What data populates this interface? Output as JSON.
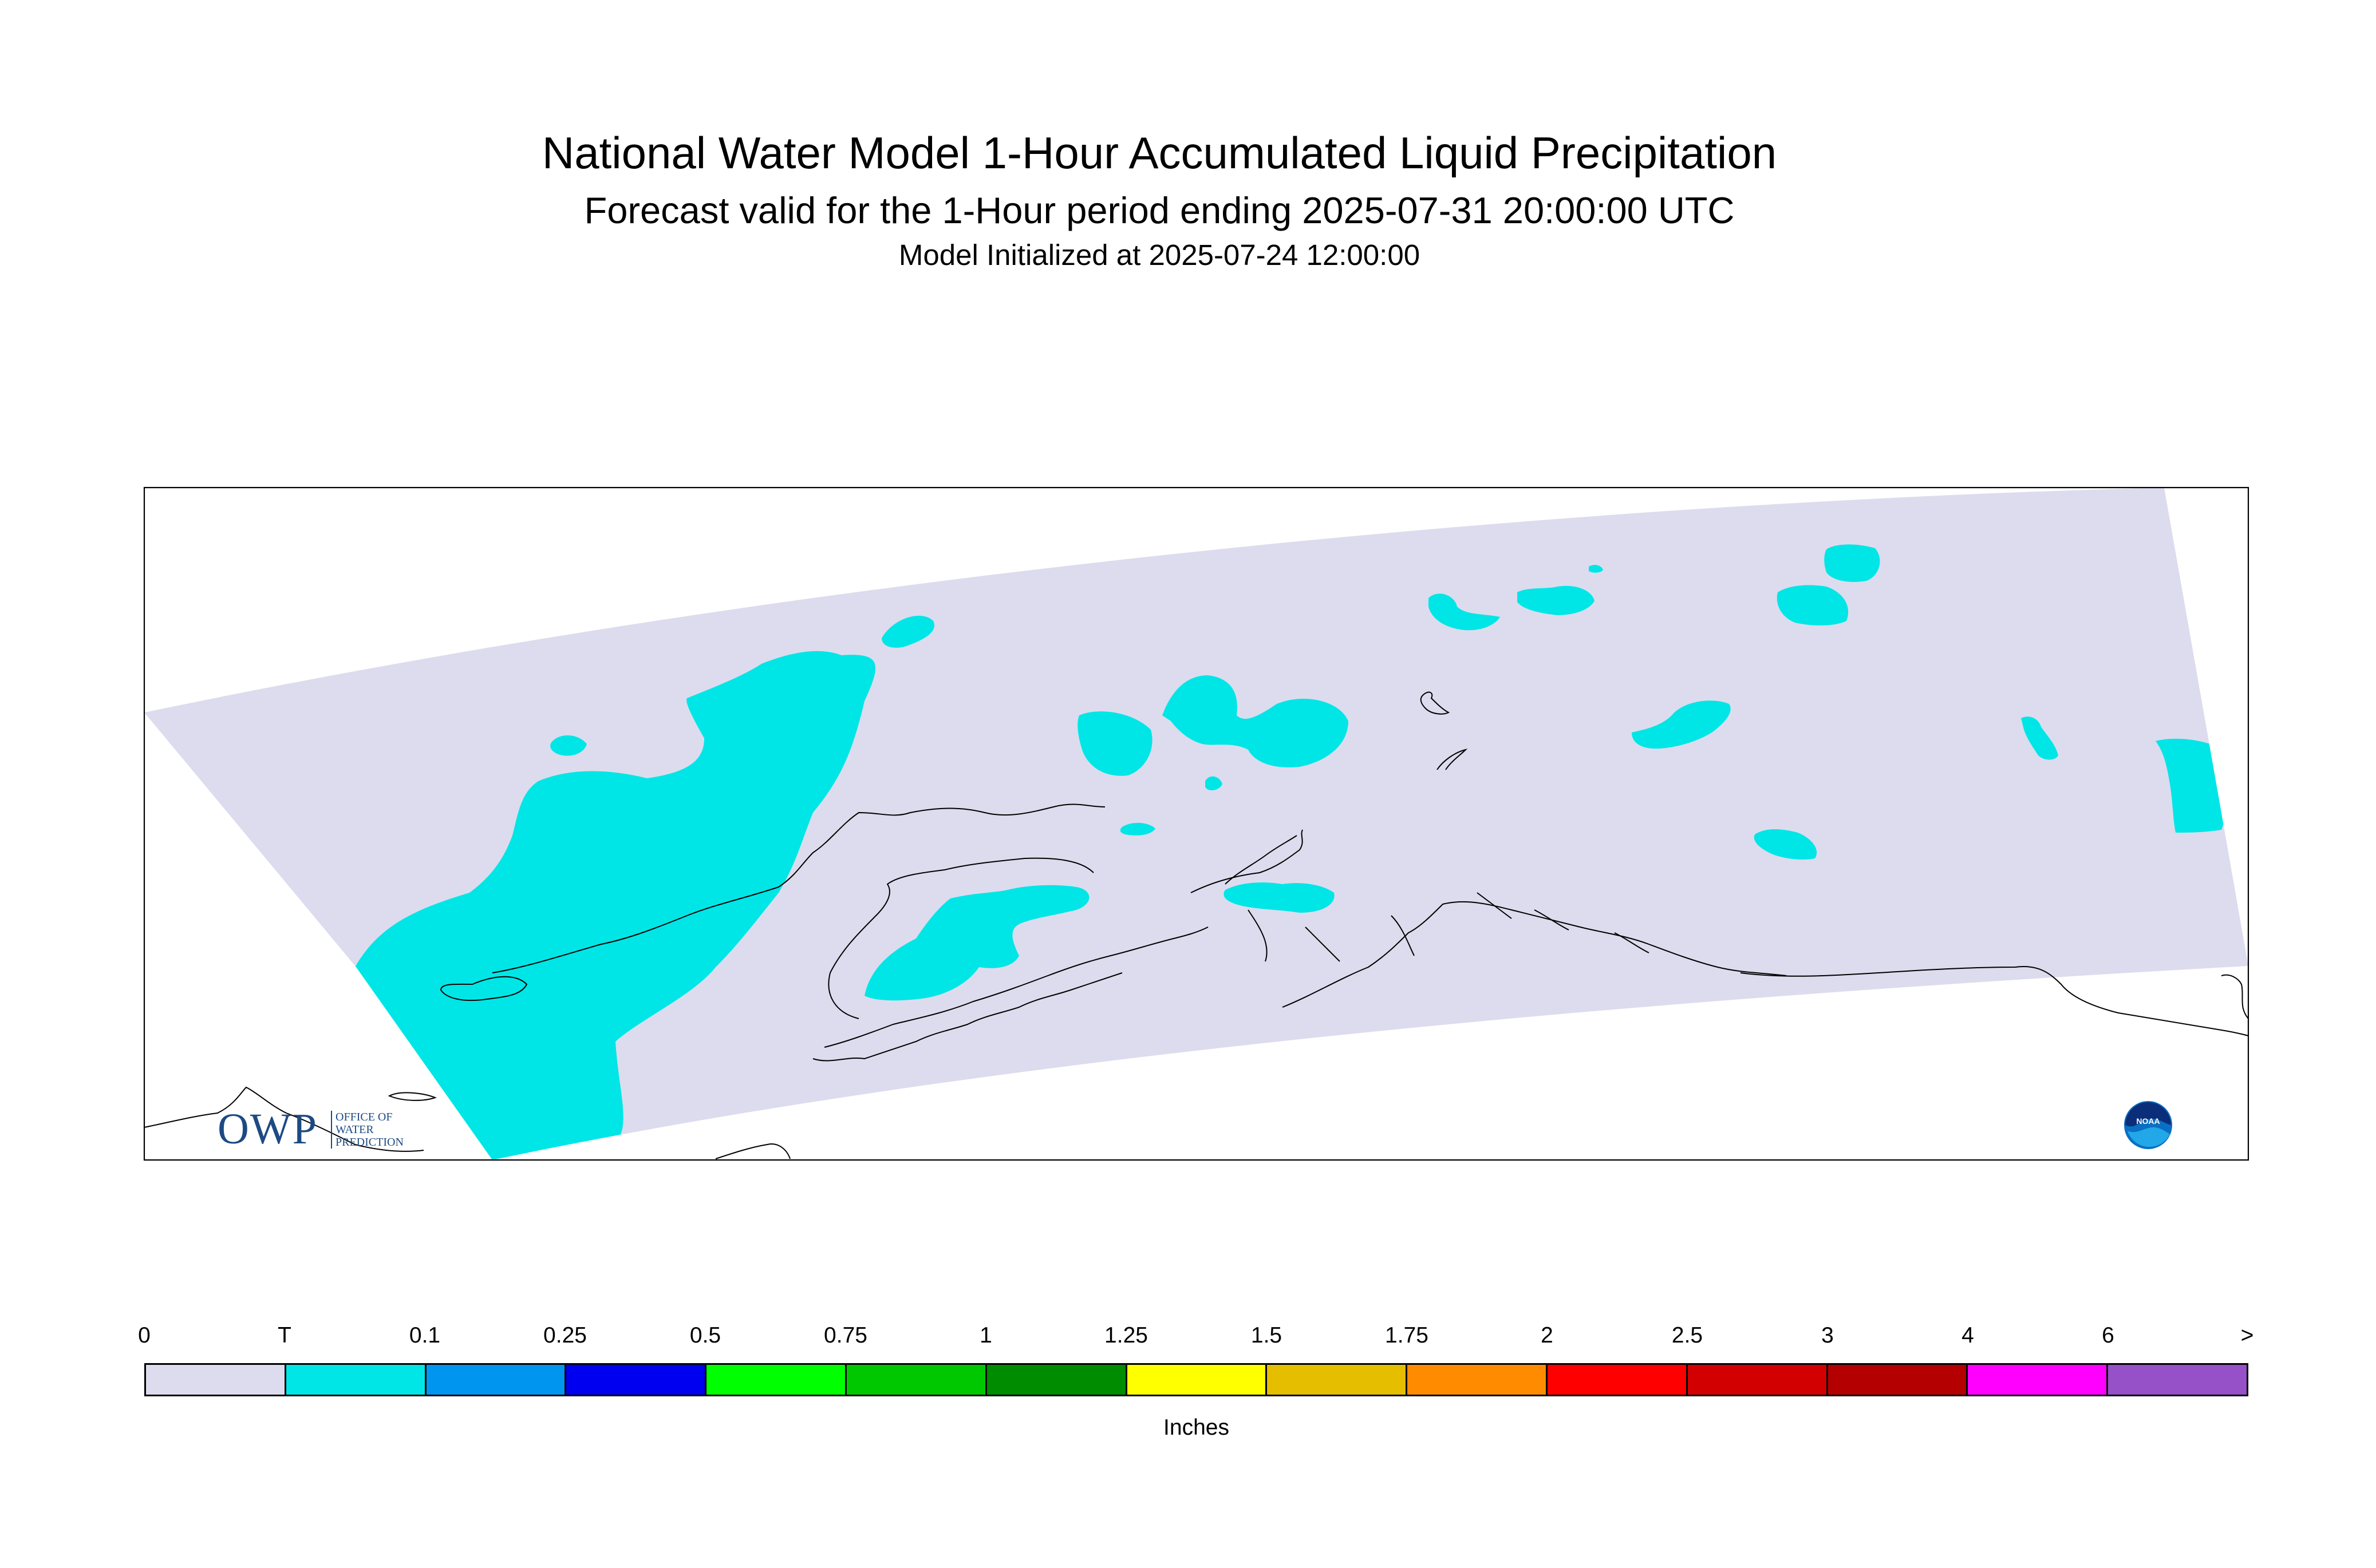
{
  "header": {
    "title": "National Water Model 1-Hour Accumulated Liquid Precipitation",
    "subtitle": "Forecast valid for the 1-Hour period ending 2025-07-31 20:00:00 UTC",
    "initialized": "Model Initialized at 2025-07-24 12:00:00"
  },
  "map": {
    "domain_fill_color": "#dcdcee",
    "precip_fill_color": "#00e6e6",
    "coastline_color": "#000000"
  },
  "logos": {
    "owp": {
      "letters": "OWP",
      "line1": "OFFICE OF",
      "line2": "WATER",
      "line3": "PREDICTION"
    },
    "noaa": {
      "text": "NOAA"
    }
  },
  "legend": {
    "unit": "Inches",
    "tick_labels": [
      "0",
      "T",
      "0.1",
      "0.25",
      "0.5",
      "0.75",
      "1",
      "1.25",
      "1.5",
      "1.75",
      "2",
      "2.5",
      "3",
      "4",
      "6",
      ">"
    ],
    "colors": [
      "#dcdcee",
      "#00e6e6",
      "#0096f0",
      "#0000f0",
      "#00ff00",
      "#00c800",
      "#008c00",
      "#ffff00",
      "#e6be00",
      "#ff8c00",
      "#ff0000",
      "#d20000",
      "#b40000",
      "#ff00ff",
      "#9650c8"
    ]
  }
}
